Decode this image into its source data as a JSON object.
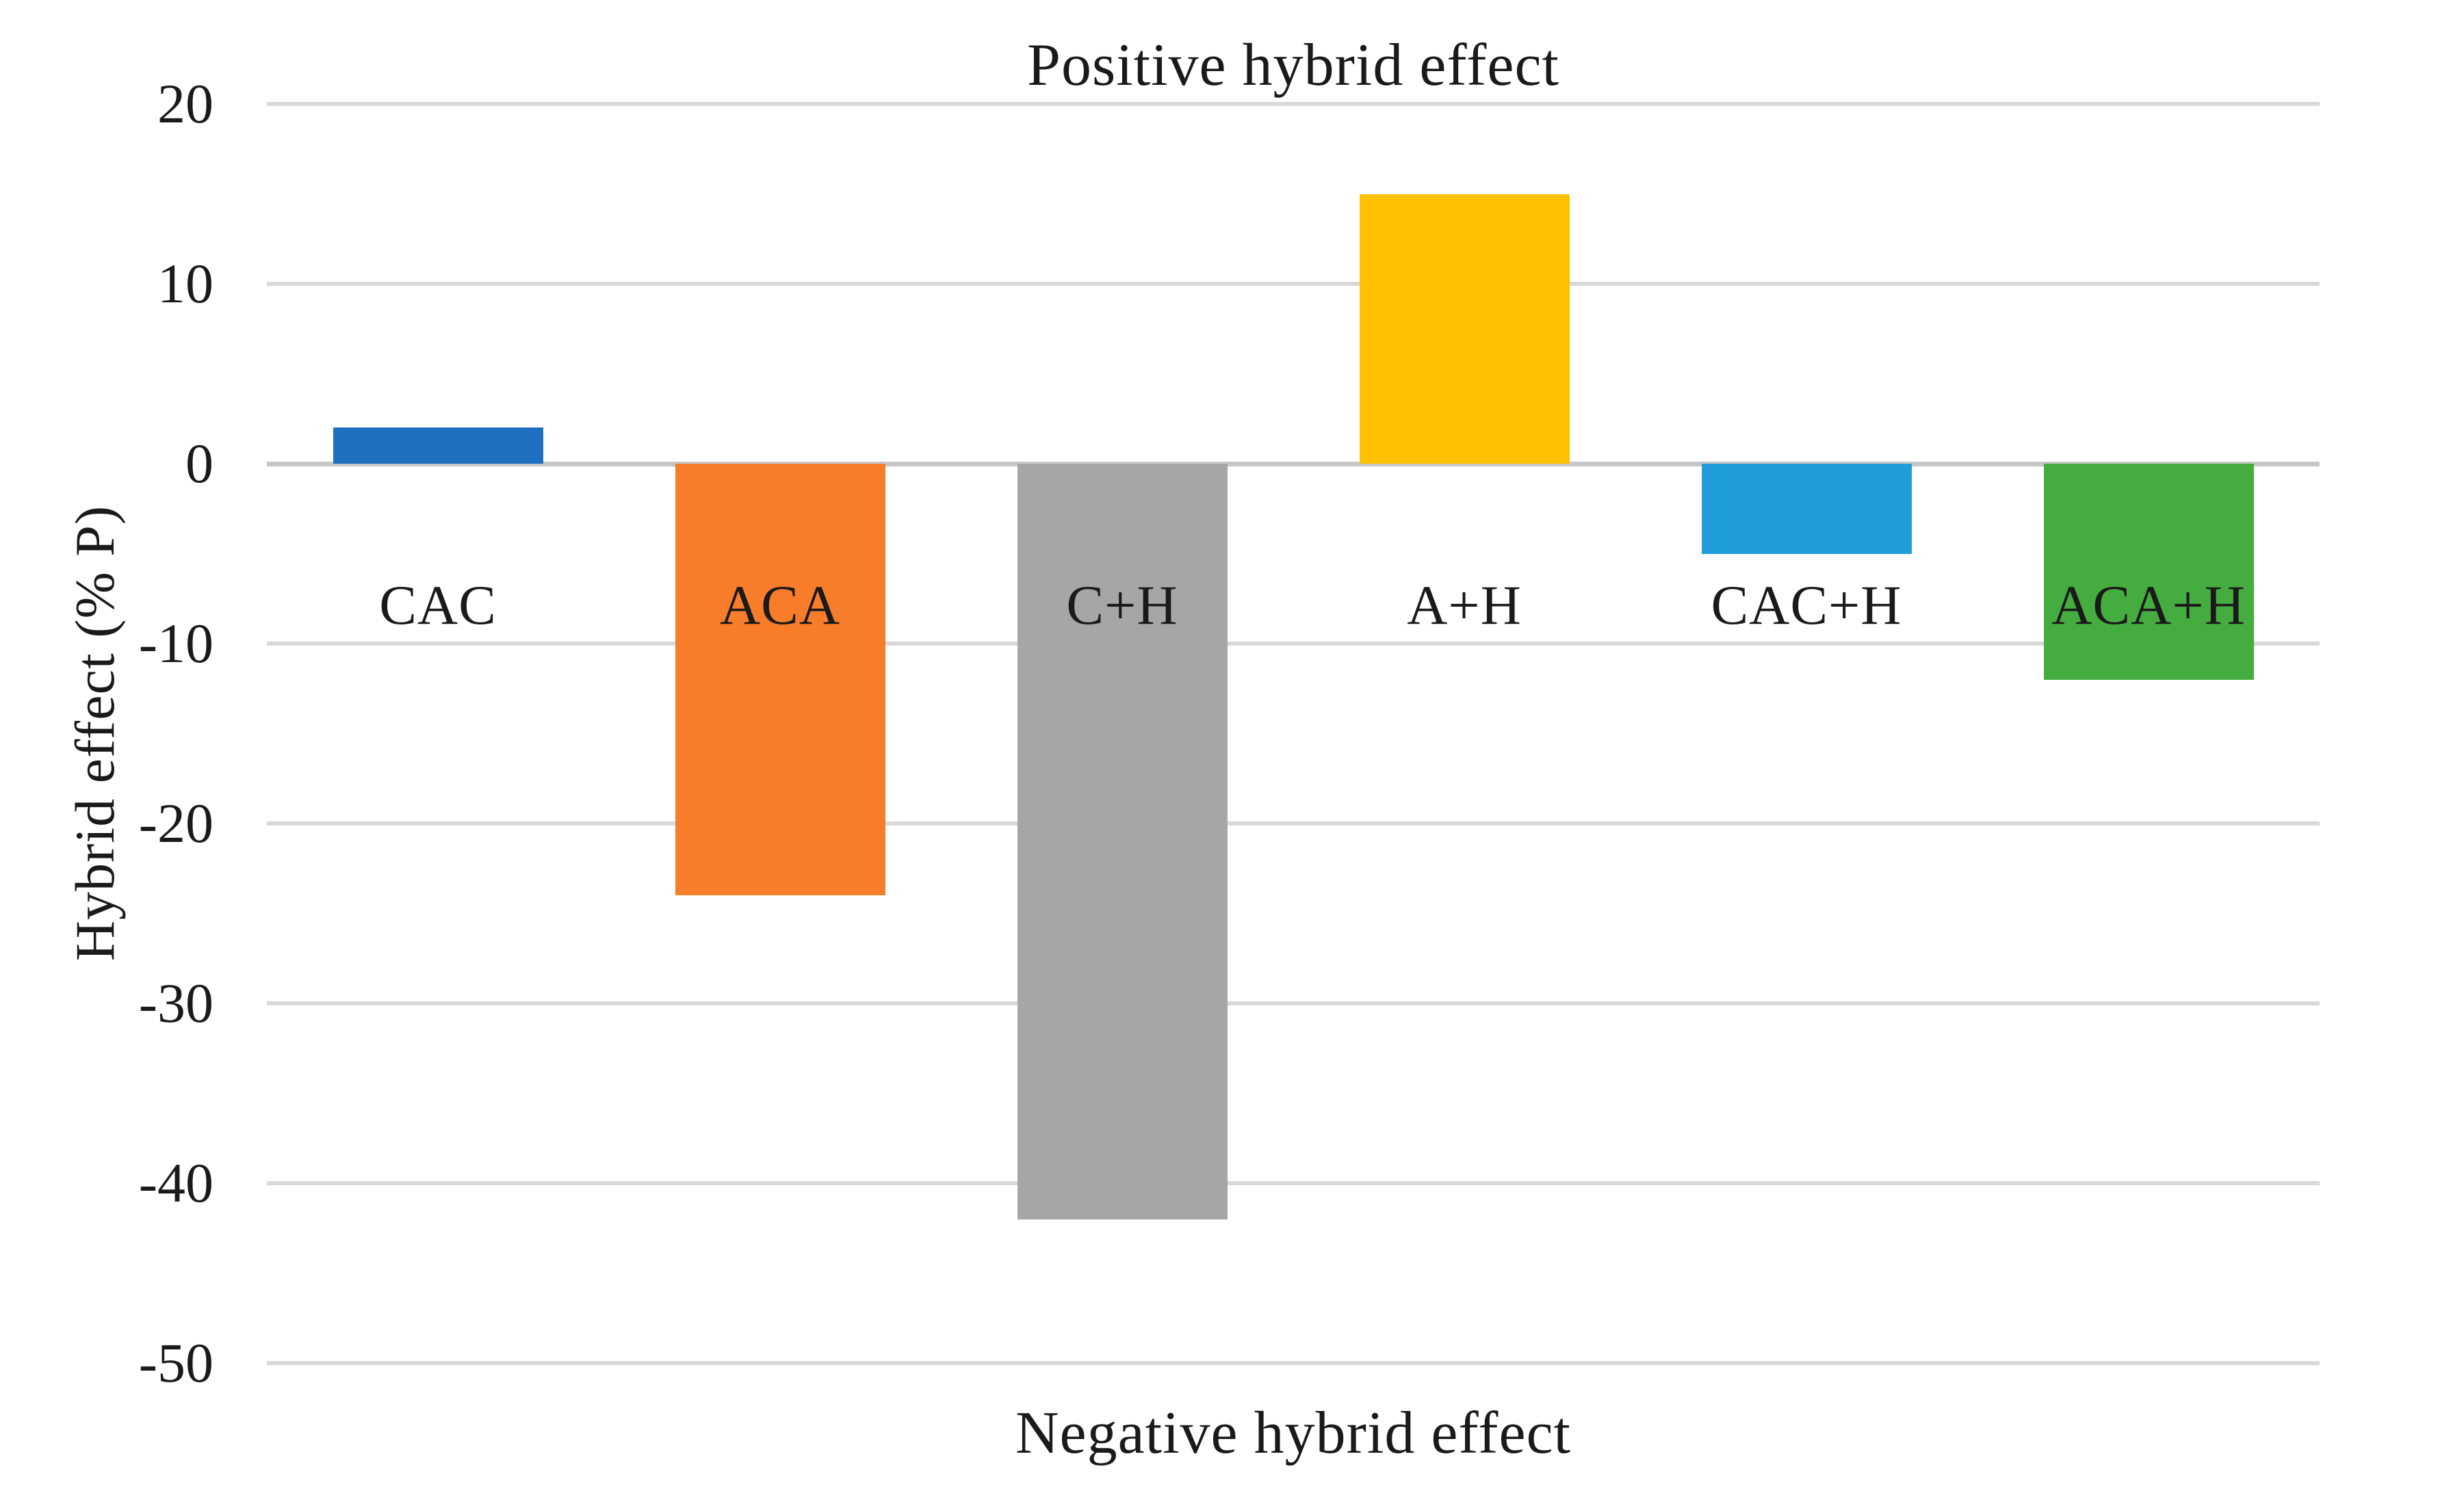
{
  "chart_data": {
    "type": "bar",
    "title_top": "Positive hybrid effect",
    "title_bottom": "Negative hybrid effect",
    "ylabel": "Hybrid effect (% P)",
    "categories": [
      "CAC",
      "ACA",
      "C+H",
      "A+H",
      "CAC+H",
      "ACA+H"
    ],
    "values": [
      2,
      -24,
      -42,
      15,
      -5,
      -12
    ],
    "bar_colors": [
      "#1F70C1",
      "#F87D2B",
      "#A6A6A6",
      "#FFC000",
      "#219ED9",
      "#45AD3F"
    ],
    "yticks": [
      20,
      10,
      0,
      -10,
      -20,
      -30,
      -40,
      -50
    ],
    "ylim": [
      -50,
      20
    ],
    "grid": true,
    "gridline_color": "#D9D9D9",
    "zero_line_color": "#C6C6C6",
    "text_color": "#1A1A1A",
    "background": "#FFFFFF",
    "legend_position": "none"
  }
}
